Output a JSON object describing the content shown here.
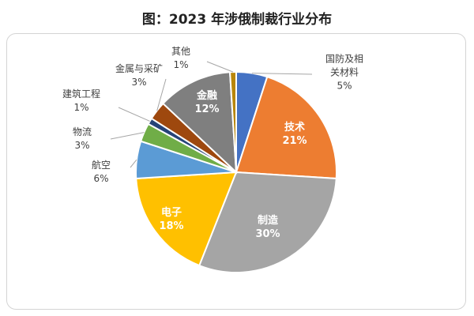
{
  "chart_data": {
    "type": "pie",
    "title": "图：2023 年涉俄制裁行业分布",
    "start_angle_deg": 0,
    "direction": "clockwise",
    "slices": [
      {
        "label": "国防及相关材料",
        "label_lines": [
          "国防及相",
          "关材料"
        ],
        "value": 5,
        "pct": "5%",
        "color": "#4472c4",
        "label_pos": "outside",
        "callout": true
      },
      {
        "label": "技术",
        "label_lines": [
          "技术"
        ],
        "value": 21,
        "pct": "21%",
        "color": "#ed7d31",
        "label_pos": "inside",
        "callout": false
      },
      {
        "label": "制造",
        "label_lines": [
          "制造"
        ],
        "value": 30,
        "pct": "30%",
        "color": "#a5a5a5",
        "label_pos": "inside",
        "callout": false
      },
      {
        "label": "电子",
        "label_lines": [
          "电子"
        ],
        "value": 18,
        "pct": "18%",
        "color": "#ffc000",
        "label_pos": "inside",
        "callout": false
      },
      {
        "label": "航空",
        "label_lines": [
          "航空"
        ],
        "value": 6,
        "pct": "6%",
        "color": "#5b9bd5",
        "label_pos": "outside",
        "callout": true
      },
      {
        "label": "物流",
        "label_lines": [
          "物流"
        ],
        "value": 3,
        "pct": "3%",
        "color": "#70ad47",
        "label_pos": "outside",
        "callout": true
      },
      {
        "label": "建筑工程",
        "label_lines": [
          "建筑工程"
        ],
        "value": 1,
        "pct": "1%",
        "color": "#264478",
        "label_pos": "outside",
        "callout": true
      },
      {
        "label": "金属与采矿",
        "label_lines": [
          "金属与采矿"
        ],
        "value": 3,
        "pct": "3%",
        "color": "#9e480e",
        "label_pos": "outside",
        "callout": true
      },
      {
        "label": "金融",
        "label_lines": [
          "金融"
        ],
        "value": 12,
        "pct": "12%",
        "color": "#7f7f7f",
        "label_pos": "inside",
        "callout": false
      },
      {
        "label": "其他",
        "label_lines": [
          "其他"
        ],
        "value": 1,
        "pct": "1%",
        "color": "#b8860b",
        "label_pos": "outside",
        "callout": true
      }
    ],
    "border_color": "#ffffff",
    "label_color_inside": "#ffffff",
    "label_color_outside": "#404040",
    "leader_color": "#a6a6a6",
    "legend": "none"
  }
}
